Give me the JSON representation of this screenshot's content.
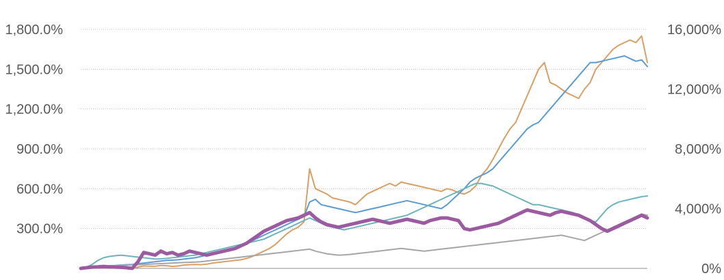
{
  "chart_data": {
    "type": "line",
    "y_left_ticks": [
      "1,800.0%",
      "1,500.0%",
      "1,200.0%",
      "900.0%",
      "600.0%",
      "300.0%"
    ],
    "y_right_ticks": [
      "16,000%",
      "12,000%",
      "8,000%",
      "4,000%",
      "0%"
    ],
    "y_left_range": [
      0,
      1800
    ],
    "y_right_range": [
      0,
      16000
    ],
    "grid": true,
    "legend": "top (cropped)",
    "points_per_series": 100,
    "series": [
      {
        "axis": "left",
        "color": "#d9a066",
        "width": 2,
        "values": [
          0,
          8,
          15,
          18,
          12,
          5,
          3,
          4,
          2,
          -3,
          10,
          18,
          17,
          16,
          22,
          20,
          15,
          18,
          25,
          28,
          30,
          28,
          32,
          40,
          45,
          50,
          55,
          60,
          65,
          75,
          90,
          110,
          130,
          150,
          180,
          220,
          260,
          290,
          310,
          350,
          750,
          600,
          580,
          560,
          530,
          520,
          510,
          500,
          480,
          520,
          560,
          580,
          600,
          620,
          640,
          620,
          650,
          640,
          630,
          620,
          610,
          600,
          590,
          580,
          600,
          590,
          570,
          560,
          580,
          620,
          700,
          750,
          820,
          900,
          980,
          1050,
          1100,
          1200,
          1300,
          1400,
          1500,
          1550,
          1400,
          1380,
          1350,
          1320,
          1300,
          1280,
          1350,
          1400,
          1500,
          1550,
          1600,
          1650,
          1680,
          1700,
          1720,
          1700,
          1750,
          1550
        ]
      },
      {
        "axis": "left",
        "color": "#5b9bd5",
        "width": 2,
        "values": [
          0,
          5,
          10,
          15,
          18,
          20,
          22,
          25,
          28,
          30,
          35,
          40,
          45,
          50,
          55,
          60,
          62,
          65,
          70,
          75,
          80,
          90,
          100,
          110,
          120,
          130,
          140,
          150,
          170,
          190,
          210,
          230,
          250,
          270,
          290,
          310,
          330,
          350,
          370,
          390,
          500,
          520,
          480,
          470,
          460,
          450,
          440,
          430,
          420,
          430,
          440,
          450,
          460,
          470,
          480,
          490,
          500,
          510,
          500,
          490,
          480,
          470,
          460,
          450,
          480,
          520,
          560,
          600,
          650,
          680,
          700,
          720,
          750,
          800,
          850,
          900,
          950,
          1000,
          1050,
          1080,
          1100,
          1150,
          1200,
          1250,
          1300,
          1350,
          1400,
          1450,
          1500,
          1550,
          1550,
          1560,
          1570,
          1580,
          1590,
          1600,
          1580,
          1560,
          1570,
          1520
        ]
      },
      {
        "axis": "left",
        "color": "#6cb4bc",
        "width": 2,
        "values": [
          0,
          10,
          30,
          60,
          80,
          90,
          95,
          100,
          95,
          90,
          85,
          80,
          75,
          70,
          72,
          75,
          80,
          85,
          90,
          95,
          100,
          110,
          120,
          130,
          140,
          150,
          160,
          170,
          180,
          190,
          200,
          210,
          220,
          240,
          260,
          280,
          300,
          320,
          340,
          360,
          380,
          360,
          340,
          320,
          310,
          300,
          290,
          300,
          310,
          320,
          330,
          340,
          350,
          360,
          370,
          380,
          390,
          400,
          420,
          440,
          460,
          480,
          500,
          520,
          540,
          560,
          580,
          600,
          620,
          640,
          640,
          630,
          620,
          600,
          580,
          560,
          540,
          520,
          500,
          480,
          480,
          470,
          460,
          450,
          440,
          430,
          420,
          400,
          380,
          360,
          350,
          400,
          450,
          480,
          500,
          510,
          520,
          530,
          540,
          545
        ]
      },
      {
        "axis": "left",
        "color": "#a6a6a6",
        "width": 2,
        "values": [
          0,
          4,
          8,
          12,
          15,
          18,
          20,
          22,
          24,
          26,
          28,
          30,
          32,
          34,
          36,
          38,
          40,
          42,
          44,
          46,
          48,
          50,
          55,
          60,
          65,
          70,
          75,
          80,
          85,
          90,
          95,
          100,
          105,
          110,
          115,
          120,
          125,
          130,
          135,
          140,
          145,
          130,
          120,
          110,
          105,
          100,
          102,
          105,
          110,
          115,
          120,
          125,
          130,
          135,
          140,
          145,
          150,
          145,
          140,
          135,
          130,
          135,
          140,
          145,
          150,
          155,
          160,
          165,
          170,
          175,
          180,
          185,
          190,
          195,
          200,
          205,
          210,
          215,
          220,
          225,
          230,
          235,
          240,
          245,
          250,
          240,
          230,
          220,
          210,
          230,
          250,
          270,
          290,
          310,
          330,
          350,
          370,
          390,
          410,
          400
        ]
      },
      {
        "axis": "left",
        "color": "#9c5aa0",
        "width": 5,
        "values": [
          0,
          5,
          10,
          12,
          15,
          12,
          10,
          8,
          5,
          0,
          50,
          120,
          110,
          100,
          130,
          110,
          120,
          100,
          110,
          130,
          120,
          110,
          100,
          110,
          120,
          130,
          140,
          150,
          170,
          190,
          220,
          250,
          280,
          300,
          320,
          340,
          360,
          370,
          380,
          400,
          420,
          380,
          350,
          330,
          320,
          310,
          320,
          330,
          340,
          350,
          360,
          370,
          360,
          350,
          340,
          350,
          360,
          370,
          360,
          350,
          340,
          360,
          370,
          380,
          380,
          370,
          360,
          300,
          290,
          300,
          310,
          320,
          330,
          340,
          360,
          380,
          400,
          420,
          440,
          430,
          420,
          410,
          400,
          420,
          430,
          420,
          410,
          400,
          380,
          360,
          330,
          300,
          280,
          300,
          320,
          340,
          360,
          380,
          400,
          380
        ]
      }
    ]
  }
}
